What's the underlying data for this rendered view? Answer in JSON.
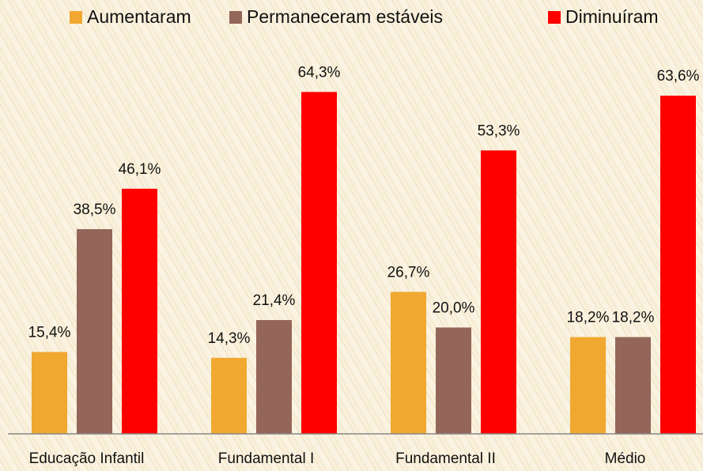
{
  "chart_data": {
    "type": "bar",
    "categories": [
      "Educação Infantil",
      "Fundamental I",
      "Fundamental II",
      "Médio"
    ],
    "series": [
      {
        "name": "Aumentaram",
        "color": "#f0a830",
        "values": [
          15.4,
          14.3,
          26.7,
          18.2
        ],
        "value_labels": [
          "15,4%",
          "14,3%",
          "26,7%",
          "18,2%"
        ]
      },
      {
        "name": "Permaneceram estáveis",
        "color": "#94665a",
        "values": [
          38.5,
          21.4,
          20.0,
          18.2
        ],
        "value_labels": [
          "38,5%",
          "21,4%",
          "20,0%",
          "18,2%"
        ]
      },
      {
        "name": "Diminuíram",
        "color": "#ff0000",
        "values": [
          46.1,
          64.3,
          53.3,
          63.6
        ],
        "value_labels": [
          "46,1%",
          "64,3%",
          "53,3%",
          "63,6%"
        ]
      }
    ],
    "ylim": [
      0,
      70
    ],
    "legend": "top"
  }
}
